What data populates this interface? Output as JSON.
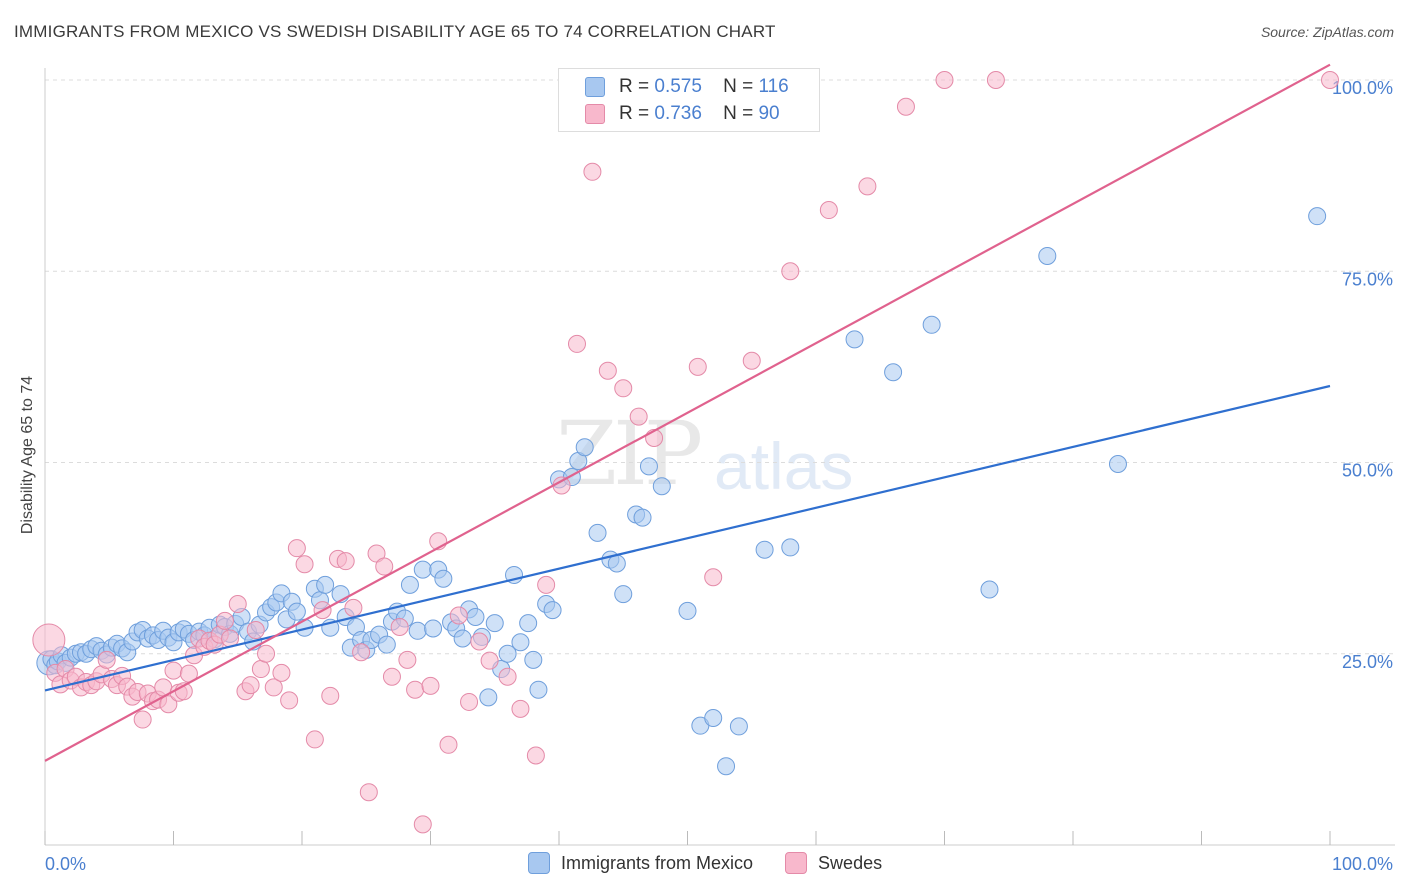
{
  "title": "IMMIGRANTS FROM MEXICO VS SWEDISH DISABILITY AGE 65 TO 74 CORRELATION CHART",
  "source": "Source: ZipAtlas.com",
  "watermark": {
    "zip": "ZIP",
    "atlas": "atlas"
  },
  "legend": {
    "r_label": "R =",
    "n_label": "N =",
    "rows": [
      {
        "r": "0.575",
        "n": "116",
        "color": "#a8c8f0"
      },
      {
        "r": "0.736",
        "n": "90",
        "color": "#f8b8cc"
      }
    ]
  },
  "colors": {
    "mexico_fill": "#a8c8f0",
    "mexico_stroke": "#6f9fdc",
    "mexico_line": "#2f6fcf",
    "swedes_fill": "#f8b8cc",
    "swedes_stroke": "#e48aa8",
    "swedes_line": "#e0628e",
    "tick_label": "#4a7fcf",
    "grid": "#dcdcdc"
  },
  "chart_data": {
    "type": "scatter",
    "title": "IMMIGRANTS FROM MEXICO VS SWEDISH DISABILITY AGE 65 TO 74 CORRELATION CHART",
    "xlabel": "",
    "ylabel": "Disability Age 65 to 74",
    "xlim": [
      0,
      100
    ],
    "ylim": [
      0,
      100
    ],
    "x_tick_labels": [
      "0.0%",
      "100.0%"
    ],
    "y_tick_labels": [
      "25.0%",
      "50.0%",
      "75.0%",
      "100.0%"
    ],
    "y_ticks": [
      25,
      50,
      75,
      100
    ],
    "grid": true,
    "legend_position": "top-center",
    "series": [
      {
        "name": "Immigrants from Mexico",
        "color": "#a8c8f0",
        "trend": {
          "x": [
            0,
            100
          ],
          "y": [
            20.2,
            60.0
          ]
        },
        "points": [
          [
            0.3,
            23.8
          ],
          [
            0.5,
            24.3
          ],
          [
            0.8,
            23.5
          ],
          [
            1.0,
            24.0
          ],
          [
            1.3,
            24.8
          ],
          [
            1.6,
            23.8
          ],
          [
            2.0,
            24.5
          ],
          [
            2.4,
            25.0
          ],
          [
            2.8,
            25.2
          ],
          [
            3.2,
            25.0
          ],
          [
            3.6,
            25.6
          ],
          [
            4.0,
            26.0
          ],
          [
            4.4,
            25.4
          ],
          [
            4.8,
            24.9
          ],
          [
            5.2,
            25.8
          ],
          [
            5.6,
            26.3
          ],
          [
            6.0,
            25.7
          ],
          [
            6.4,
            25.2
          ],
          [
            6.8,
            26.6
          ],
          [
            7.2,
            27.8
          ],
          [
            7.6,
            28.1
          ],
          [
            8.0,
            27.0
          ],
          [
            8.4,
            27.4
          ],
          [
            8.8,
            26.8
          ],
          [
            9.2,
            28.0
          ],
          [
            9.6,
            27.1
          ],
          [
            10.0,
            26.5
          ],
          [
            10.4,
            27.8
          ],
          [
            10.8,
            28.2
          ],
          [
            11.2,
            27.6
          ],
          [
            11.6,
            26.8
          ],
          [
            12.0,
            27.9
          ],
          [
            12.4,
            27.4
          ],
          [
            12.8,
            28.4
          ],
          [
            13.2,
            26.9
          ],
          [
            13.6,
            28.8
          ],
          [
            14.0,
            28.5
          ],
          [
            14.4,
            27.6
          ],
          [
            14.8,
            28.9
          ],
          [
            15.3,
            29.8
          ],
          [
            15.8,
            27.9
          ],
          [
            16.2,
            26.6
          ],
          [
            16.7,
            28.8
          ],
          [
            17.2,
            30.4
          ],
          [
            17.6,
            31.1
          ],
          [
            18.0,
            31.7
          ],
          [
            18.4,
            32.9
          ],
          [
            18.8,
            29.5
          ],
          [
            19.2,
            31.8
          ],
          [
            19.6,
            30.5
          ],
          [
            20.2,
            28.4
          ],
          [
            21.0,
            33.5
          ],
          [
            21.4,
            32.0
          ],
          [
            21.8,
            34.0
          ],
          [
            22.2,
            28.4
          ],
          [
            23.0,
            32.8
          ],
          [
            23.4,
            29.8
          ],
          [
            23.8,
            25.8
          ],
          [
            24.2,
            28.5
          ],
          [
            24.6,
            26.8
          ],
          [
            25.0,
            25.5
          ],
          [
            25.4,
            26.8
          ],
          [
            26.0,
            27.5
          ],
          [
            26.6,
            26.2
          ],
          [
            27.0,
            29.2
          ],
          [
            27.4,
            30.5
          ],
          [
            28.0,
            29.6
          ],
          [
            28.4,
            34.0
          ],
          [
            29.0,
            28.0
          ],
          [
            29.4,
            36.0
          ],
          [
            30.2,
            28.3
          ],
          [
            30.6,
            36.0
          ],
          [
            31.0,
            34.8
          ],
          [
            31.6,
            29.1
          ],
          [
            32.0,
            28.3
          ],
          [
            32.5,
            27.0
          ],
          [
            33.0,
            30.8
          ],
          [
            33.5,
            29.8
          ],
          [
            34.0,
            27.2
          ],
          [
            34.5,
            19.3
          ],
          [
            35.0,
            29.0
          ],
          [
            35.5,
            23.0
          ],
          [
            36.0,
            25.0
          ],
          [
            36.5,
            35.3
          ],
          [
            37.0,
            26.5
          ],
          [
            37.6,
            29.0
          ],
          [
            38.0,
            24.2
          ],
          [
            38.4,
            20.3
          ],
          [
            39.0,
            31.5
          ],
          [
            39.5,
            30.7
          ],
          [
            40.0,
            47.8
          ],
          [
            41.0,
            48.1
          ],
          [
            41.5,
            50.2
          ],
          [
            42.0,
            52.0
          ],
          [
            43.0,
            40.8
          ],
          [
            44.0,
            37.3
          ],
          [
            44.5,
            36.8
          ],
          [
            45.0,
            32.8
          ],
          [
            46.0,
            43.2
          ],
          [
            46.5,
            42.8
          ],
          [
            47.0,
            49.5
          ],
          [
            48.0,
            46.9
          ],
          [
            50.0,
            30.6
          ],
          [
            51.0,
            15.6
          ],
          [
            52.0,
            16.6
          ],
          [
            53.0,
            10.3
          ],
          [
            54.0,
            15.5
          ],
          [
            56.0,
            38.6
          ],
          [
            58.0,
            38.9
          ],
          [
            63.0,
            66.1
          ],
          [
            66.0,
            61.8
          ],
          [
            69.0,
            68.0
          ],
          [
            73.5,
            33.4
          ],
          [
            78.0,
            77.0
          ],
          [
            83.5,
            49.8
          ],
          [
            99.0,
            82.2
          ]
        ]
      },
      {
        "name": "Swedes",
        "color": "#f8b8cc",
        "trend": {
          "x": [
            0,
            100
          ],
          "y": [
            11.0,
            102.0
          ]
        },
        "points": [
          [
            0.3,
            26.8
          ],
          [
            0.8,
            22.5
          ],
          [
            1.2,
            21.0
          ],
          [
            1.6,
            23.0
          ],
          [
            2.0,
            21.5
          ],
          [
            2.4,
            22.0
          ],
          [
            2.8,
            20.6
          ],
          [
            3.2,
            21.3
          ],
          [
            3.6,
            20.9
          ],
          [
            4.0,
            21.4
          ],
          [
            4.4,
            22.3
          ],
          [
            4.8,
            24.2
          ],
          [
            5.2,
            21.7
          ],
          [
            5.6,
            20.9
          ],
          [
            6.0,
            22.1
          ],
          [
            6.4,
            20.7
          ],
          [
            6.8,
            19.4
          ],
          [
            7.2,
            20.0
          ],
          [
            7.6,
            16.4
          ],
          [
            8.0,
            19.8
          ],
          [
            8.4,
            18.8
          ],
          [
            8.8,
            19.0
          ],
          [
            9.2,
            20.6
          ],
          [
            9.6,
            18.4
          ],
          [
            10.0,
            22.8
          ],
          [
            10.4,
            19.9
          ],
          [
            10.8,
            20.1
          ],
          [
            11.2,
            22.4
          ],
          [
            11.6,
            24.8
          ],
          [
            12.0,
            27.0
          ],
          [
            12.4,
            25.9
          ],
          [
            12.8,
            26.7
          ],
          [
            13.2,
            26.2
          ],
          [
            13.6,
            27.5
          ],
          [
            14.0,
            29.3
          ],
          [
            14.4,
            27.0
          ],
          [
            15.0,
            31.5
          ],
          [
            15.6,
            20.1
          ],
          [
            16.0,
            20.9
          ],
          [
            16.4,
            28.1
          ],
          [
            16.8,
            23.0
          ],
          [
            17.2,
            25.0
          ],
          [
            17.8,
            20.6
          ],
          [
            18.4,
            22.5
          ],
          [
            19.0,
            18.9
          ],
          [
            19.6,
            38.8
          ],
          [
            20.2,
            36.7
          ],
          [
            21.0,
            13.8
          ],
          [
            21.6,
            30.7
          ],
          [
            22.2,
            19.5
          ],
          [
            22.8,
            37.4
          ],
          [
            23.4,
            37.1
          ],
          [
            24.0,
            31.0
          ],
          [
            24.6,
            25.2
          ],
          [
            25.2,
            6.9
          ],
          [
            25.8,
            38.1
          ],
          [
            26.4,
            36.4
          ],
          [
            27.0,
            22.0
          ],
          [
            27.6,
            28.5
          ],
          [
            28.2,
            24.2
          ],
          [
            28.8,
            20.3
          ],
          [
            29.4,
            2.7
          ],
          [
            30.0,
            20.8
          ],
          [
            30.6,
            39.7
          ],
          [
            31.4,
            13.1
          ],
          [
            32.2,
            30.0
          ],
          [
            33.0,
            18.7
          ],
          [
            33.8,
            26.6
          ],
          [
            34.6,
            24.1
          ],
          [
            36.0,
            22.0
          ],
          [
            37.0,
            17.8
          ],
          [
            38.2,
            11.7
          ],
          [
            39.0,
            34.0
          ],
          [
            40.2,
            47.0
          ],
          [
            41.4,
            65.5
          ],
          [
            42.6,
            88.0
          ],
          [
            43.8,
            62.0
          ],
          [
            45.0,
            59.7
          ],
          [
            46.2,
            56.0
          ],
          [
            47.4,
            53.2
          ],
          [
            50.8,
            62.5
          ],
          [
            52.0,
            35.0
          ],
          [
            55.0,
            63.3
          ],
          [
            58.0,
            75.0
          ],
          [
            61.0,
            83.0
          ],
          [
            64.0,
            86.1
          ],
          [
            67.0,
            96.5
          ],
          [
            70.0,
            100.0
          ],
          [
            74.0,
            100.0
          ],
          [
            100.0,
            100.0
          ]
        ]
      }
    ]
  },
  "bottom_legend": {
    "items": [
      {
        "label": "Immigrants from Mexico",
        "color": "#a8c8f0"
      },
      {
        "label": "Swedes",
        "color": "#f8b8cc"
      }
    ]
  }
}
